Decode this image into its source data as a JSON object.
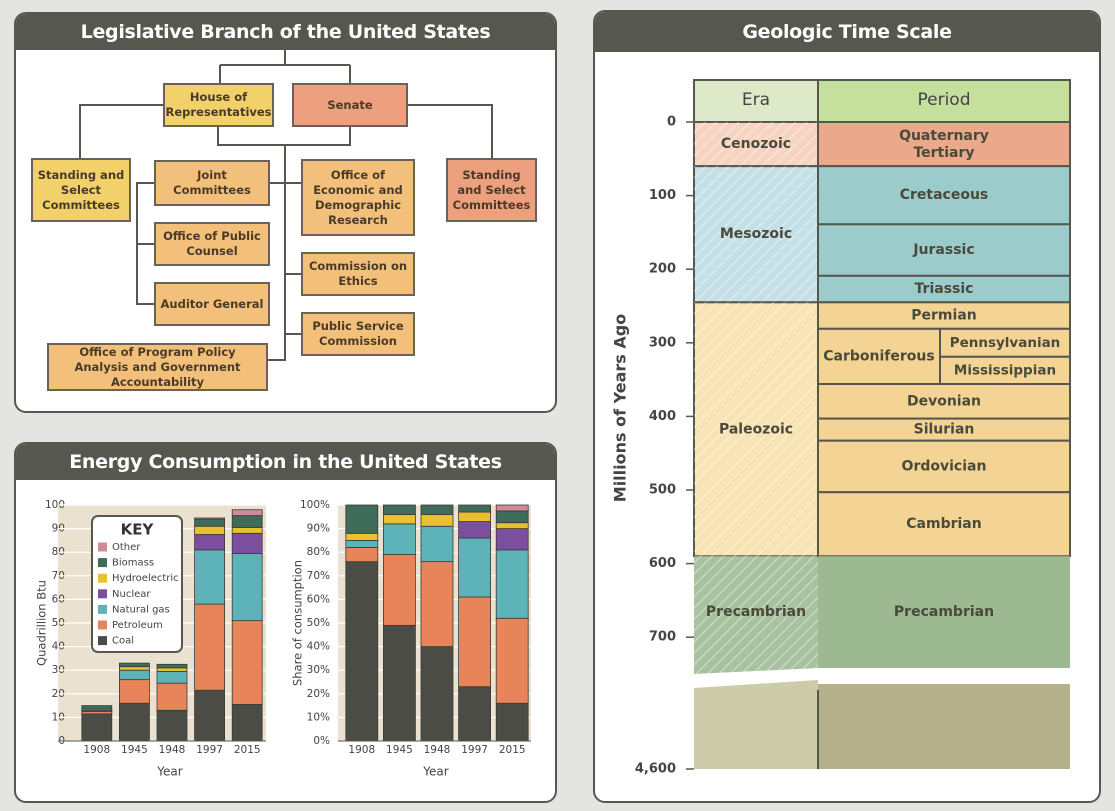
{
  "org_chart": {
    "title": "Legislative Branch of the United States",
    "nodes": [
      {
        "label": "House of Representatives",
        "color": "#f2d16b"
      },
      {
        "label": "Senate",
        "color": "#eda07e"
      },
      {
        "label": "Standing and Select Committees",
        "color": "#f2d16b"
      },
      {
        "label": "Joint Committees",
        "color": "#f2c07a"
      },
      {
        "label": "Office of Economic and Demographic Research",
        "color": "#f2c07a"
      },
      {
        "label": "Standing and Select Committees",
        "color": "#eda07e"
      },
      {
        "label": "Office of Public Counsel",
        "color": "#f2c07a"
      },
      {
        "label": "Commission on Ethics",
        "color": "#f2c07a"
      },
      {
        "label": "Auditor General",
        "color": "#f2c07a"
      },
      {
        "label": "Public Service Commission",
        "color": "#f2c07a"
      },
      {
        "label": "Office of Program Policy Analysis and Government Accountability",
        "color": "#f2c07a"
      }
    ]
  },
  "chart_data": [
    {
      "type": "stacked_bar",
      "title": "Energy Consumption in the United States",
      "x_label": "Year",
      "y_label": "Quadrillion Btu",
      "legend_title": "KEY",
      "legend": "top-left",
      "categories": [
        "1908",
        "1945",
        "1948",
        "1997",
        "2015"
      ],
      "series": [
        {
          "name": "Coal",
          "color": "#4b4c46",
          "values": [
            11.5,
            16,
            13,
            21.5,
            15.5
          ]
        },
        {
          "name": "Petroleum",
          "color": "#e8845a",
          "values": [
            1,
            10,
            11.5,
            36.5,
            35.5
          ]
        },
        {
          "name": "Natural gas",
          "color": "#5db3b8",
          "values": [
            0.5,
            4,
            5,
            23,
            28.5
          ]
        },
        {
          "name": "Nuclear",
          "color": "#7b4e9e",
          "values": [
            0,
            0,
            0,
            6.5,
            8.5
          ]
        },
        {
          "name": "Hydroelectric",
          "color": "#e8c030",
          "values": [
            0.5,
            1.5,
            1.5,
            3.5,
            2.5
          ]
        },
        {
          "name": "Biomass",
          "color": "#3f6b5a",
          "values": [
            1.5,
            1.5,
            1.5,
            3,
            5
          ]
        },
        {
          "name": "Other",
          "color": "#d08a98",
          "values": [
            0,
            0,
            0,
            0.5,
            2.5
          ]
        }
      ],
      "ylim": [
        0,
        100
      ],
      "yticks": [
        0,
        10,
        20,
        30,
        40,
        50,
        60,
        70,
        80,
        90,
        100
      ],
      "grid": true
    },
    {
      "type": "stacked_bar",
      "x_label": "Year",
      "y_label": "Share of consumption",
      "categories": [
        "1908",
        "1945",
        "1948",
        "1997",
        "2015"
      ],
      "series": [
        {
          "color": "#4b4c46",
          "values": [
            76,
            49,
            40,
            23,
            16
          ]
        },
        {
          "color": "#e8845a",
          "values": [
            6,
            30,
            36,
            38,
            36
          ]
        },
        {
          "color": "#5db3b8",
          "values": [
            3,
            13,
            15,
            25,
            29
          ]
        },
        {
          "color": "#7b4e9e",
          "values": [
            0,
            0,
            0,
            7,
            9
          ]
        },
        {
          "color": "#e8c030",
          "values": [
            3,
            4,
            5,
            4,
            2.5
          ]
        },
        {
          "color": "#3f6b5a",
          "values": [
            12,
            4,
            4,
            3,
            5
          ]
        },
        {
          "color": "#d08a98",
          "values": [
            0,
            0,
            0,
            0,
            2.5
          ]
        }
      ],
      "ylim": [
        0,
        100
      ],
      "yticks": [
        {
          "value": 0,
          "label": "0%"
        },
        {
          "value": 10,
          "label": "10%"
        },
        {
          "value": 20,
          "label": "20%"
        },
        {
          "value": 30,
          "label": "30%"
        },
        {
          "value": 40,
          "label": "40%"
        },
        {
          "value": 50,
          "label": "50%"
        },
        {
          "value": 60,
          "label": "60%"
        },
        {
          "value": 70,
          "label": "70%"
        },
        {
          "value": 80,
          "label": "80%"
        },
        {
          "value": 90,
          "label": "90%"
        },
        {
          "value": 100,
          "label": "100%"
        }
      ],
      "grid": true
    },
    {
      "type": "timescale",
      "title": "Geologic Time Scale",
      "y_label": "Millions of Years Ago",
      "era_header": "Era",
      "period_header": "Period",
      "ylim": [
        0,
        4600
      ],
      "yticks": [
        0,
        100,
        200,
        300,
        400,
        500,
        600,
        700,
        {
          "value": 4600,
          "label": "4,600"
        }
      ],
      "eras": [
        {
          "name": "Cenozoic",
          "start": 0,
          "end": 60,
          "color": "#f6d4c1",
          "period_color": "#eaa98a"
        },
        {
          "name": "Mesozoic",
          "start": 60,
          "end": 245,
          "color": "#c4e0e6",
          "period_color": "#9ccbcc"
        },
        {
          "name": "Paleozoic",
          "start": 245,
          "end": 590,
          "color": "#f8e3b3",
          "period_color": "#f3d495"
        },
        {
          "name": "Precambrian",
          "start": 590,
          "end": 4600,
          "color": "#a8c2a0",
          "period_color": "#9db992"
        }
      ],
      "periods": [
        {
          "name": "Quaternary Tertiary",
          "era": 0,
          "start": 0,
          "end": 60
        },
        {
          "name": "Cretaceous",
          "era": 1,
          "start": 60,
          "end": 139
        },
        {
          "name": "Jurassic",
          "era": 1,
          "start": 139,
          "end": 209
        },
        {
          "name": "Triassic",
          "era": 1,
          "start": 209,
          "end": 245
        },
        {
          "name": "Permian",
          "era": 2,
          "start": 245,
          "end": 281
        },
        {
          "name": "Carboniferous",
          "era": 2,
          "start": 281,
          "end": 356,
          "subperiods": [
            {
              "name": "Pennsylvanian",
              "start": 281,
              "end": 319
            },
            {
              "name": "Mississippian",
              "start": 319,
              "end": 356
            }
          ]
        },
        {
          "name": "Devonian",
          "era": 2,
          "start": 356,
          "end": 403
        },
        {
          "name": "Silurian",
          "era": 2,
          "start": 403,
          "end": 433
        },
        {
          "name": "Ordovician",
          "era": 2,
          "start": 433,
          "end": 503
        },
        {
          "name": "Cambrian",
          "era": 2,
          "start": 503,
          "end": 590
        },
        {
          "name": "Precambrian",
          "era": 3,
          "start": 590,
          "end": 4600
        }
      ]
    }
  ]
}
